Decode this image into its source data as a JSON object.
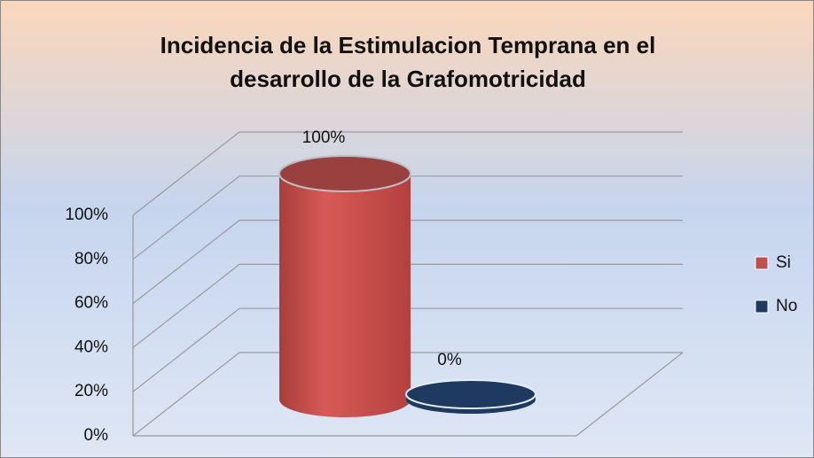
{
  "chart_data": {
    "type": "bar3d",
    "title": "Incidencia de la Estimulacion Temprana en el desarrollo de la Grafomotricidad",
    "categories": [
      null
    ],
    "series": [
      {
        "name": "Si",
        "color": "#c0504d",
        "values": [
          100
        ],
        "value_labels": [
          "100%"
        ]
      },
      {
        "name": "No",
        "color": "#1f3a60",
        "values": [
          0
        ],
        "value_labels": [
          "0%"
        ]
      }
    ],
    "ylim": [
      0,
      100
    ],
    "yticks": [
      {
        "value": 0,
        "label": "0%"
      },
      {
        "value": 20,
        "label": "20%"
      },
      {
        "value": 40,
        "label": "40%"
      },
      {
        "value": 60,
        "label": "60%"
      },
      {
        "value": 80,
        "label": "80%"
      },
      {
        "value": 100,
        "label": "100%"
      }
    ],
    "grid": true,
    "legend": "right"
  }
}
